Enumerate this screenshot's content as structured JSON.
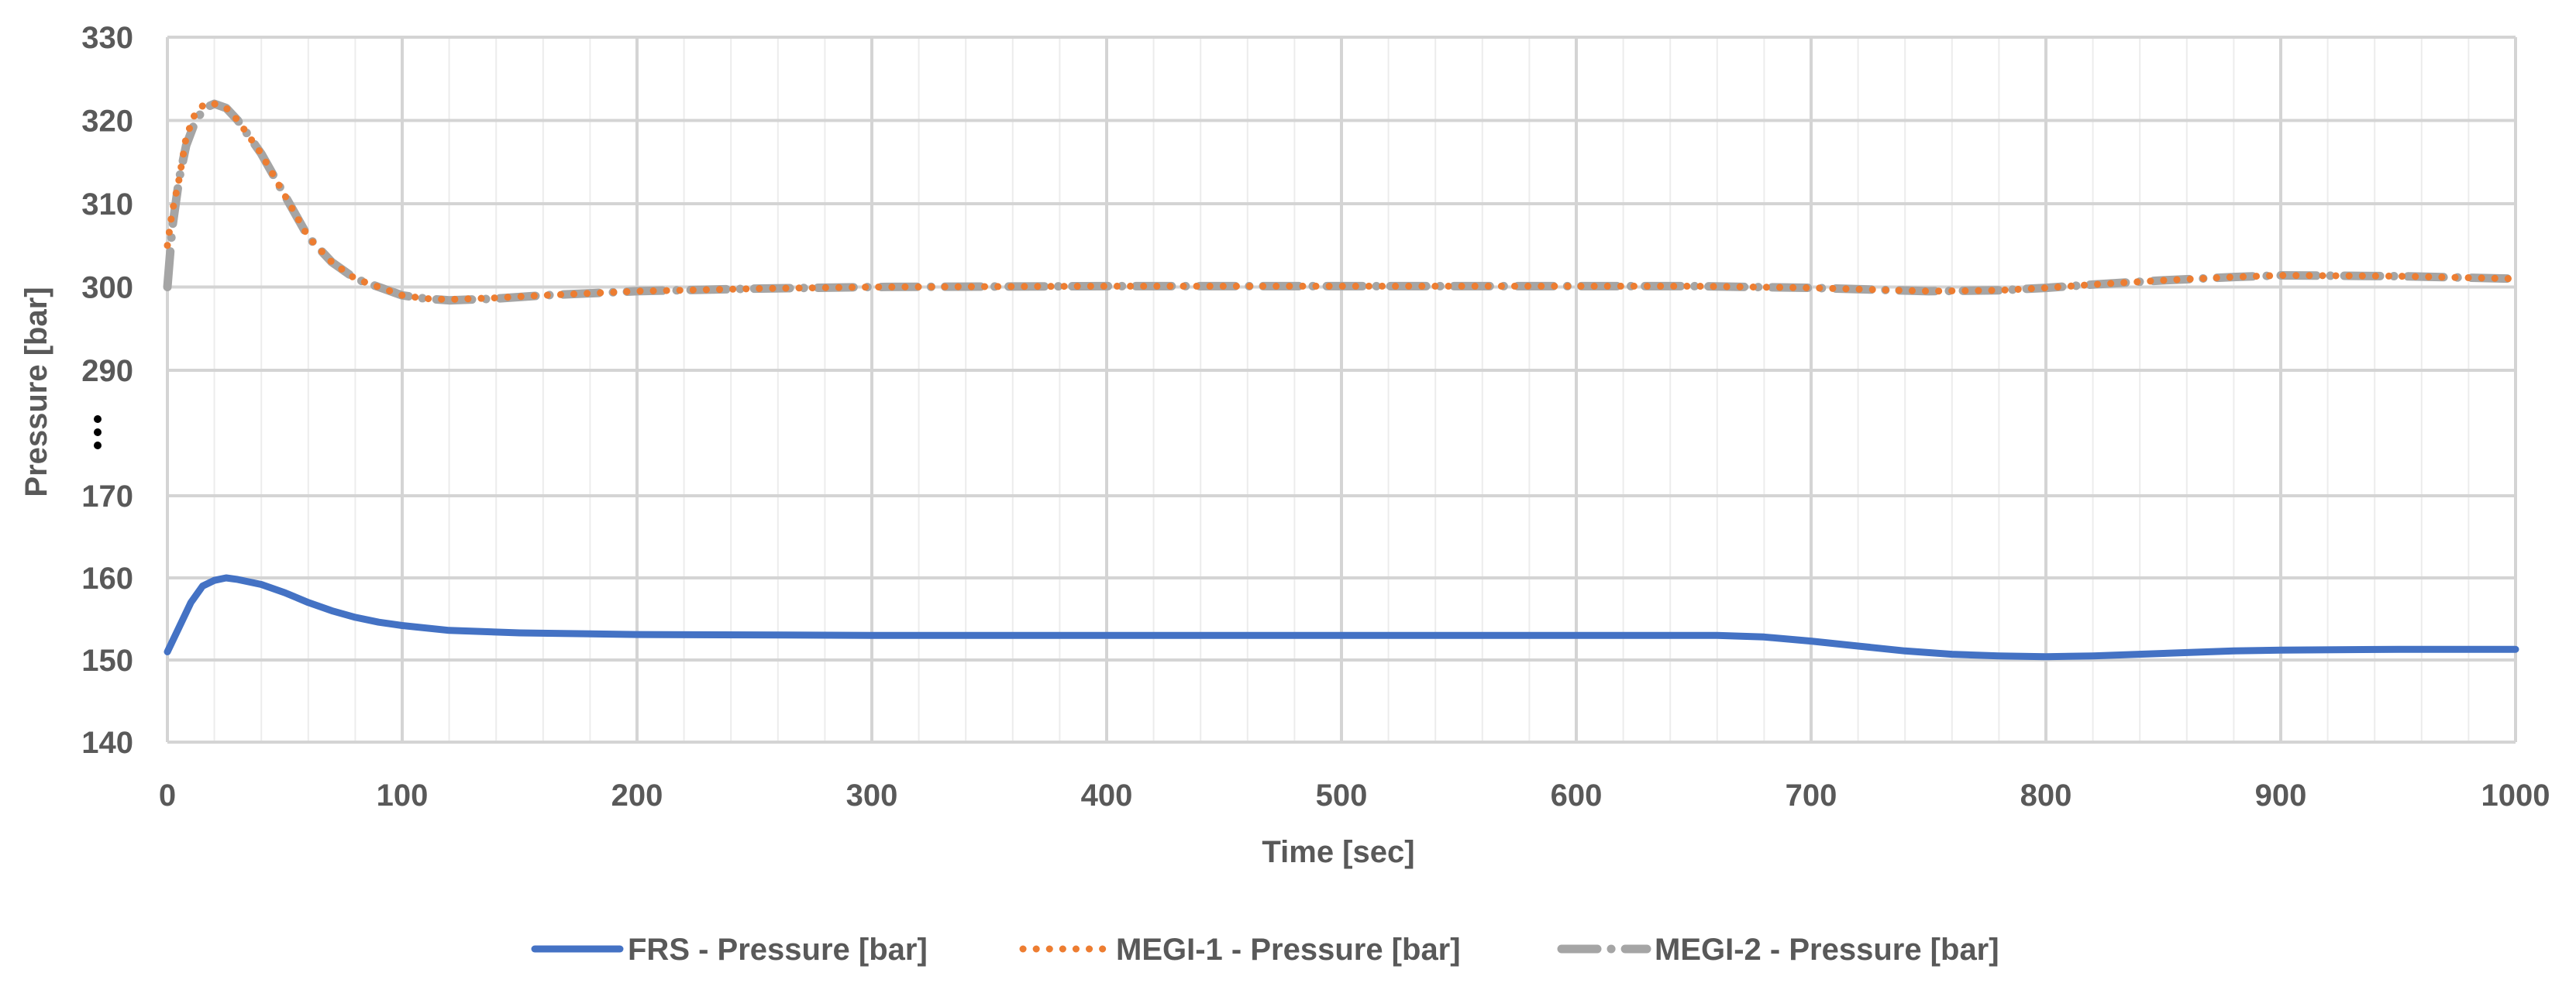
{
  "chart_data": {
    "type": "line",
    "title": "",
    "xlabel": "Time [sec]",
    "ylabel": "Pressure [bar]",
    "xlim": [
      0,
      1000
    ],
    "x_ticks": [
      0,
      100,
      200,
      300,
      400,
      500,
      600,
      700,
      800,
      900,
      1000
    ],
    "y_ticks_upper": [
      290,
      300,
      310,
      320,
      330
    ],
    "y_ticks_lower": [
      140,
      150,
      160,
      170
    ],
    "y_axis_break": "between 170 and 290",
    "grid": true,
    "legend_position": "bottom",
    "series": [
      {
        "name": "FRS - Pressure [bar]",
        "color": "#4472C4",
        "style": "solid",
        "x": [
          0,
          5,
          10,
          15,
          20,
          25,
          30,
          40,
          50,
          60,
          70,
          80,
          90,
          100,
          120,
          150,
          200,
          300,
          400,
          500,
          600,
          660,
          680,
          700,
          720,
          740,
          760,
          780,
          800,
          820,
          850,
          880,
          900,
          950,
          1000
        ],
        "y": [
          151,
          154,
          157,
          159,
          159.7,
          160,
          159.8,
          159.2,
          158.2,
          157,
          156,
          155.2,
          154.6,
          154.2,
          153.6,
          153.3,
          153.1,
          153,
          153,
          153,
          153,
          153,
          152.8,
          152.3,
          151.7,
          151.1,
          150.7,
          150.5,
          150.4,
          150.5,
          150.8,
          151.1,
          151.2,
          151.3,
          151.3
        ]
      },
      {
        "name": "MEGI-1 - Pressure [bar]",
        "color": "#ED7D31",
        "style": "dotted",
        "x": [
          0,
          2,
          5,
          8,
          12,
          16,
          20,
          25,
          30,
          40,
          50,
          60,
          70,
          80,
          90,
          100,
          110,
          120,
          140,
          160,
          200,
          250,
          300,
          400,
          500,
          600,
          650,
          700,
          750,
          780,
          800,
          820,
          850,
          880,
          900,
          950,
          1000
        ],
        "y": [
          305,
          309,
          313,
          318,
          321,
          322,
          322,
          321.5,
          320,
          316,
          311,
          306,
          303,
          301,
          300,
          299,
          298.6,
          298.5,
          298.7,
          299,
          299.5,
          299.8,
          300,
          300.1,
          300.1,
          300.1,
          300.1,
          299.9,
          299.5,
          299.6,
          299.9,
          300.3,
          300.8,
          301.2,
          301.4,
          301.3,
          301
        ]
      },
      {
        "name": "MEGI-2 - Pressure [bar]",
        "color": "#A5A5A5",
        "style": "dashdot",
        "x": [
          0,
          2,
          5,
          8,
          12,
          16,
          20,
          25,
          30,
          40,
          50,
          60,
          70,
          80,
          90,
          100,
          110,
          120,
          140,
          160,
          200,
          250,
          300,
          400,
          500,
          600,
          650,
          700,
          750,
          780,
          800,
          820,
          850,
          880,
          900,
          950,
          1000
        ],
        "y": [
          300,
          307,
          313,
          317,
          320,
          321.5,
          322,
          321.5,
          320,
          316,
          311,
          306,
          303,
          301,
          300,
          299,
          298.6,
          298.4,
          298.6,
          299,
          299.5,
          299.8,
          300,
          300.1,
          300.1,
          300.1,
          300.1,
          299.9,
          299.5,
          299.6,
          299.9,
          300.3,
          300.8,
          301.2,
          301.4,
          301.3,
          301
        ]
      }
    ]
  }
}
